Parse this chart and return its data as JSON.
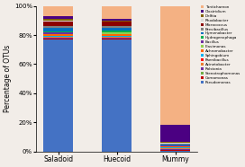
{
  "categories": [
    "Saladoid",
    "Huecoid",
    "Mummy"
  ],
  "taxa": [
    "Pseudomonas",
    "Comamonas",
    "Stenotrophomonas",
    "Rolstonia",
    "Acinetobacter",
    "Paenibacillus",
    "Sphingobium",
    "Achromobacter",
    "Flavimonas",
    "Bacillus",
    "Hydrogenophaga",
    "Hymenobacter",
    "Brevibacillus",
    "Micrococcus",
    "Rhodobacter",
    "Delftia",
    "Clostridium",
    "Tantichareon"
  ],
  "colors": [
    "#4472C4",
    "#C00000",
    "#70AD47",
    "#7030A0",
    "#ED7D31",
    "#FF0000",
    "#00B0F0",
    "#FF6600",
    "#92D050",
    "#7030A0",
    "#00B050",
    "#0070C0",
    "#808080",
    "#8B0000",
    "#D9D9D9",
    "#806000",
    "#4B0082",
    "#F4B183"
  ],
  "values": {
    "Saladoid": [
      0.77,
      0.004,
      0.004,
      0.004,
      0.005,
      0.004,
      0.005,
      0.008,
      0.004,
      0.008,
      0.012,
      0.02,
      0.012,
      0.03,
      0.01,
      0.01,
      0.02,
      0.066
    ],
    "Huecoid": [
      0.77,
      0.004,
      0.004,
      0.004,
      0.005,
      0.004,
      0.005,
      0.008,
      0.012,
      0.004,
      0.012,
      0.02,
      0.008,
      0.03,
      0.005,
      0.005,
      0.012,
      0.088
    ],
    "Mummy": [
      0.004,
      0.004,
      0.004,
      0.004,
      0.004,
      0.004,
      0.004,
      0.004,
      0.004,
      0.004,
      0.004,
      0.004,
      0.004,
      0.004,
      0.004,
      0.004,
      0.12,
      0.82
    ]
  },
  "legend_labels": [
    "Tantichareon",
    "Clostridium",
    "Delftia",
    "Rhodobacter",
    "Micrococcus",
    "Brevibacillus",
    "Hymenobacter",
    "Hydrogenophaga",
    "Bacillus",
    "Flavimonas",
    "Achromobacter",
    "Sphingobium",
    "Paenibacillus",
    "Acinetobacter",
    "Rolstonia",
    "Stenotrophomonas",
    "Comamonas",
    "Pseudomonas"
  ],
  "legend_colors": [
    "#F4B183",
    "#4B0082",
    "#806000",
    "#D9D9D9",
    "#8B0000",
    "#808080",
    "#0070C0",
    "#00B050",
    "#7030A0",
    "#92D050",
    "#FF6600",
    "#00B0F0",
    "#FF0000",
    "#ED7D31",
    "#7030A0",
    "#70AD47",
    "#C00000",
    "#4472C4"
  ],
  "ylabel": "Percentage of OTUs",
  "background": "#f2ede8",
  "bar_width": 0.5
}
